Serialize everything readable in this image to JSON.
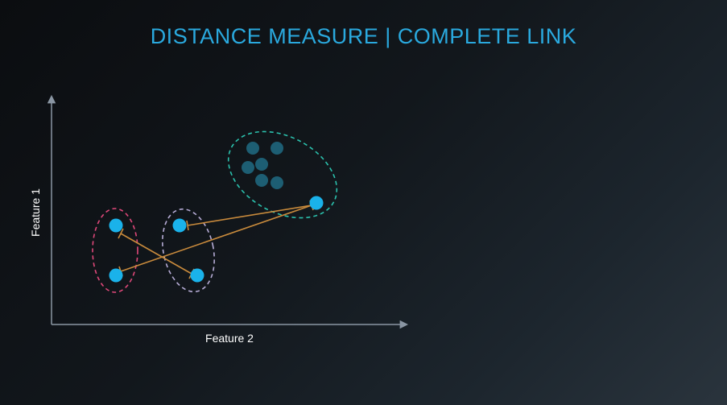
{
  "title": "DISTANCE MEASURE | COMPLETE LINK",
  "axes": {
    "x_label": "Feature 2",
    "y_label": "Feature 1"
  },
  "colors": {
    "title": "#2aa9de",
    "axis": "#8a96a3",
    "point_active": "#1ab2ea",
    "point_muted": "#1d5e73",
    "link_line": "#c88a3c",
    "cluster_pink": "#e0487a",
    "cluster_lavender": "#b6acd6",
    "cluster_teal": "#2bc1ad"
  }
}
